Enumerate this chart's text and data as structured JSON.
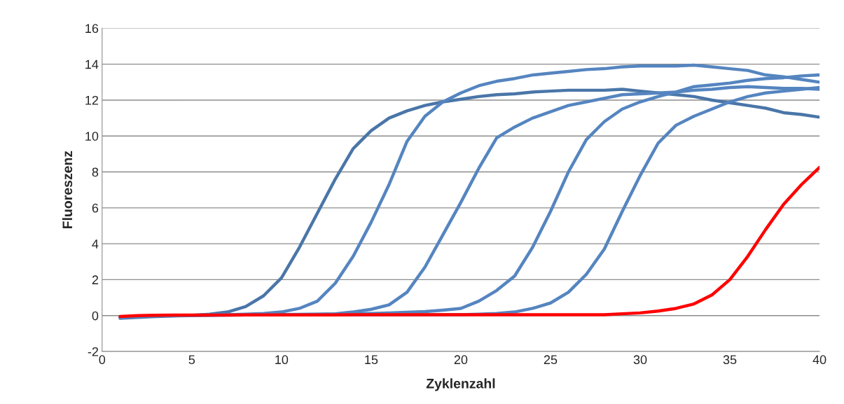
{
  "chart_data": {
    "type": "line",
    "xlabel": "Zyklenzahl",
    "ylabel": "Fluoreszenz",
    "x": [
      1,
      2,
      3,
      4,
      5,
      6,
      7,
      8,
      9,
      10,
      11,
      12,
      13,
      14,
      15,
      16,
      17,
      18,
      19,
      20,
      21,
      22,
      23,
      24,
      25,
      26,
      27,
      28,
      29,
      30,
      31,
      32,
      33,
      34,
      35,
      36,
      37,
      38,
      39,
      40
    ],
    "series": [
      {
        "color": "#4a76a8",
        "values": [
          -0.15,
          -0.1,
          -0.05,
          -0.02,
          0,
          0.08,
          0.2,
          0.5,
          1.1,
          2.1,
          3.8,
          5.7,
          7.6,
          9.3,
          10.3,
          11.0,
          11.4,
          11.7,
          11.9,
          12.05,
          12.2,
          12.3,
          12.35,
          12.45,
          12.5,
          12.55,
          12.55,
          12.55,
          12.6,
          12.5,
          12.4,
          12.3,
          12.2,
          12.0,
          11.85,
          11.7,
          11.55,
          11.3,
          11.2,
          11.05
        ]
      },
      {
        "color": "#5585c0",
        "values": [
          -0.1,
          -0.05,
          0,
          0,
          0.02,
          0.03,
          0.05,
          0.08,
          0.12,
          0.2,
          0.4,
          0.8,
          1.8,
          3.3,
          5.2,
          7.3,
          9.7,
          11.1,
          11.9,
          12.4,
          12.8,
          13.05,
          13.2,
          13.4,
          13.5,
          13.6,
          13.7,
          13.75,
          13.85,
          13.9,
          13.9,
          13.9,
          13.95,
          13.85,
          13.75,
          13.65,
          13.4,
          13.3,
          13.15,
          13.0
        ]
      },
      {
        "color": "#5585c0",
        "values": [
          -0.1,
          -0.05,
          0,
          0,
          0.02,
          0.03,
          0.04,
          0.05,
          0.05,
          0.06,
          0.07,
          0.08,
          0.1,
          0.2,
          0.35,
          0.6,
          1.3,
          2.7,
          4.5,
          6.3,
          8.2,
          9.9,
          10.5,
          11.0,
          11.35,
          11.7,
          11.9,
          12.1,
          12.3,
          12.35,
          12.4,
          12.45,
          12.55,
          12.6,
          12.7,
          12.75,
          12.7,
          12.65,
          12.65,
          12.6
        ]
      },
      {
        "color": "#5585c0",
        "values": [
          -0.1,
          -0.05,
          0,
          0,
          0.02,
          0.03,
          0.04,
          0.05,
          0.05,
          0.06,
          0.06,
          0.07,
          0.08,
          0.1,
          0.12,
          0.15,
          0.18,
          0.22,
          0.3,
          0.4,
          0.8,
          1.4,
          2.2,
          3.8,
          5.8,
          8.0,
          9.8,
          10.8,
          11.5,
          11.9,
          12.2,
          12.45,
          12.75,
          12.85,
          12.95,
          13.1,
          13.2,
          13.25,
          13.35,
          13.4
        ]
      },
      {
        "color": "#5585c0",
        "values": [
          -0.1,
          -0.05,
          0,
          0,
          0.02,
          0.03,
          0.03,
          0.04,
          0.04,
          0.04,
          0.05,
          0.05,
          0.05,
          0.05,
          0.05,
          0.05,
          0.05,
          0.05,
          0.05,
          0.05,
          0.08,
          0.12,
          0.2,
          0.4,
          0.7,
          1.3,
          2.3,
          3.7,
          5.8,
          7.8,
          9.6,
          10.6,
          11.1,
          11.5,
          11.9,
          12.2,
          12.4,
          12.5,
          12.6,
          12.7
        ]
      },
      {
        "color": "#ff0000",
        "values": [
          -0.05,
          0,
          0.02,
          0.03,
          0.03,
          0.03,
          0.03,
          0.04,
          0.04,
          0.04,
          0.04,
          0.04,
          0.04,
          0.05,
          0.05,
          0.05,
          0.05,
          0.05,
          0.05,
          0.05,
          0.05,
          0.05,
          0.05,
          0.05,
          0.05,
          0.05,
          0.05,
          0.05,
          0.1,
          0.15,
          0.25,
          0.4,
          0.65,
          1.15,
          2.0,
          3.3,
          4.8,
          6.2,
          7.3,
          8.25
        ]
      }
    ],
    "xlim": [
      0,
      40
    ],
    "xticks": [
      0,
      5,
      10,
      15,
      20,
      25,
      30,
      35,
      40
    ],
    "ylim": [
      -2,
      16
    ],
    "yticks": [
      -2,
      0,
      2,
      4,
      6,
      8,
      10,
      12,
      14,
      16
    ],
    "grid": "y",
    "marker": "none",
    "line_style": "solid"
  }
}
